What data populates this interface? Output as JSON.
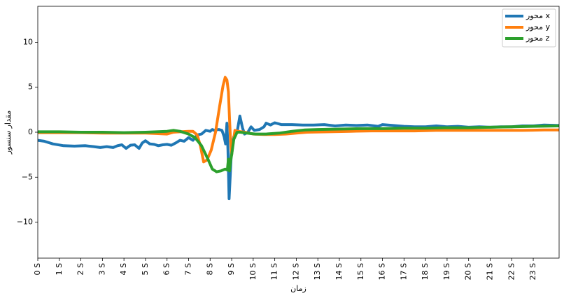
{
  "chart_data": {
    "type": "line",
    "title": "",
    "xlabel": "زمان",
    "ylabel": "مقدار سنسور",
    "xlim": [
      0,
      24.2
    ],
    "ylim": [
      -14,
      14
    ],
    "grid": false,
    "legend_position": "top-right",
    "x_ticks": [
      {
        "value": 0,
        "label": "0 S"
      },
      {
        "value": 1,
        "label": "1 S"
      },
      {
        "value": 2,
        "label": "2 S"
      },
      {
        "value": 3,
        "label": "3 S"
      },
      {
        "value": 4,
        "label": "4 S"
      },
      {
        "value": 5,
        "label": "5 S"
      },
      {
        "value": 6,
        "label": "6 S"
      },
      {
        "value": 7,
        "label": "7 S"
      },
      {
        "value": 8,
        "label": "8 S"
      },
      {
        "value": 9,
        "label": "9 S"
      },
      {
        "value": 10,
        "label": "10 S"
      },
      {
        "value": 11,
        "label": "11 S"
      },
      {
        "value": 12,
        "label": "12 S"
      },
      {
        "value": 13,
        "label": "13 S"
      },
      {
        "value": 14,
        "label": "14 S"
      },
      {
        "value": 15,
        "label": "15 S"
      },
      {
        "value": 16,
        "label": "16 S"
      },
      {
        "value": 17,
        "label": "17 S"
      },
      {
        "value": 18,
        "label": "18 S"
      },
      {
        "value": 19,
        "label": "19 S"
      },
      {
        "value": 20,
        "label": "20 S"
      },
      {
        "value": 21,
        "label": "21 S"
      },
      {
        "value": 22,
        "label": "22 S"
      },
      {
        "value": 23,
        "label": "23 S"
      }
    ],
    "y_ticks": [
      {
        "value": 10,
        "label": "10"
      },
      {
        "value": 5,
        "label": "5"
      },
      {
        "value": 0,
        "label": "0"
      },
      {
        "value": -5,
        "label": "−5"
      },
      {
        "value": -10,
        "label": "−10"
      }
    ],
    "series": [
      {
        "name": "محور x",
        "color": "#1f77b4",
        "points": [
          [
            0,
            -0.9
          ],
          [
            0.3,
            -1.0
          ],
          [
            0.7,
            -1.3
          ],
          [
            1.2,
            -1.5
          ],
          [
            1.7,
            -1.55
          ],
          [
            2.2,
            -1.5
          ],
          [
            2.6,
            -1.6
          ],
          [
            2.9,
            -1.7
          ],
          [
            3.2,
            -1.6
          ],
          [
            3.5,
            -1.7
          ],
          [
            3.7,
            -1.5
          ],
          [
            3.9,
            -1.4
          ],
          [
            4.1,
            -1.8
          ],
          [
            4.3,
            -1.45
          ],
          [
            4.5,
            -1.4
          ],
          [
            4.7,
            -1.8
          ],
          [
            4.85,
            -1.2
          ],
          [
            5.0,
            -0.95
          ],
          [
            5.2,
            -1.3
          ],
          [
            5.4,
            -1.35
          ],
          [
            5.6,
            -1.5
          ],
          [
            5.8,
            -1.4
          ],
          [
            6.0,
            -1.35
          ],
          [
            6.2,
            -1.45
          ],
          [
            6.4,
            -1.2
          ],
          [
            6.6,
            -0.9
          ],
          [
            6.8,
            -1.0
          ],
          [
            7.0,
            -0.6
          ],
          [
            7.2,
            -0.9
          ],
          [
            7.4,
            -0.3
          ],
          [
            7.6,
            -0.2
          ],
          [
            7.8,
            0.2
          ],
          [
            8.0,
            0.1
          ],
          [
            8.1,
            0.3
          ],
          [
            8.2,
            0.2
          ],
          [
            8.4,
            0.3
          ],
          [
            8.55,
            0.2
          ],
          [
            8.65,
            -0.5
          ],
          [
            8.72,
            -1.3
          ],
          [
            8.78,
            1.0
          ],
          [
            8.83,
            -2.0
          ],
          [
            8.88,
            -7.4
          ],
          [
            8.93,
            -5.0
          ],
          [
            9.0,
            -1.5
          ],
          [
            9.1,
            -0.5
          ],
          [
            9.25,
            0.0
          ],
          [
            9.38,
            1.8
          ],
          [
            9.5,
            0.5
          ],
          [
            9.6,
            -0.2
          ],
          [
            9.75,
            0.0
          ],
          [
            9.9,
            0.6
          ],
          [
            10.05,
            0.2
          ],
          [
            10.3,
            0.3
          ],
          [
            10.5,
            0.6
          ],
          [
            10.6,
            1.0
          ],
          [
            10.8,
            0.8
          ],
          [
            11.0,
            1.05
          ],
          [
            11.3,
            0.85
          ],
          [
            11.8,
            0.85
          ],
          [
            12.3,
            0.8
          ],
          [
            12.8,
            0.8
          ],
          [
            13.3,
            0.85
          ],
          [
            13.8,
            0.7
          ],
          [
            14.3,
            0.8
          ],
          [
            14.8,
            0.75
          ],
          [
            15.3,
            0.8
          ],
          [
            15.8,
            0.65
          ],
          [
            16.0,
            0.85
          ],
          [
            16.5,
            0.75
          ],
          [
            17.0,
            0.65
          ],
          [
            17.5,
            0.6
          ],
          [
            18.0,
            0.6
          ],
          [
            18.5,
            0.7
          ],
          [
            19.0,
            0.6
          ],
          [
            19.5,
            0.65
          ],
          [
            20.0,
            0.55
          ],
          [
            20.5,
            0.6
          ],
          [
            21.0,
            0.55
          ],
          [
            21.5,
            0.6
          ],
          [
            22.0,
            0.6
          ],
          [
            22.5,
            0.7
          ],
          [
            23.0,
            0.7
          ],
          [
            23.5,
            0.8
          ],
          [
            24.2,
            0.75
          ]
        ]
      },
      {
        "name": "محور y",
        "color": "#ff7f0e",
        "points": [
          [
            0,
            -0.05
          ],
          [
            1,
            -0.05
          ],
          [
            2,
            -0.05
          ],
          [
            3,
            -0.1
          ],
          [
            4,
            -0.1
          ],
          [
            5,
            -0.1
          ],
          [
            5.5,
            -0.15
          ],
          [
            6.0,
            -0.2
          ],
          [
            6.3,
            0.0
          ],
          [
            6.6,
            0.05
          ],
          [
            7.0,
            0.1
          ],
          [
            7.2,
            0.1
          ],
          [
            7.4,
            -0.3
          ],
          [
            7.55,
            -1.5
          ],
          [
            7.7,
            -3.3
          ],
          [
            7.85,
            -3.1
          ],
          [
            8.05,
            -2.0
          ],
          [
            8.25,
            0.0
          ],
          [
            8.45,
            3.0
          ],
          [
            8.6,
            5.2
          ],
          [
            8.7,
            6.1
          ],
          [
            8.78,
            5.8
          ],
          [
            8.85,
            4.5
          ],
          [
            8.9,
            1.5
          ],
          [
            8.95,
            -1.0
          ],
          [
            9.0,
            -2.5
          ],
          [
            9.05,
            -1.5
          ],
          [
            9.15,
            0.2
          ],
          [
            9.3,
            0.1
          ],
          [
            9.6,
            0.0
          ],
          [
            10.0,
            -0.2
          ],
          [
            10.5,
            -0.25
          ],
          [
            11.0,
            -0.25
          ],
          [
            11.5,
            -0.2
          ],
          [
            12.0,
            -0.1
          ],
          [
            12.5,
            0.0
          ],
          [
            13.5,
            0.05
          ],
          [
            14.5,
            0.1
          ],
          [
            15.5,
            0.15
          ],
          [
            16.5,
            0.15
          ],
          [
            17.5,
            0.15
          ],
          [
            18.5,
            0.2
          ],
          [
            19.5,
            0.2
          ],
          [
            20.5,
            0.2
          ],
          [
            21.5,
            0.2
          ],
          [
            22.5,
            0.2
          ],
          [
            23.5,
            0.25
          ],
          [
            24.2,
            0.25
          ]
        ]
      },
      {
        "name": "محور z",
        "color": "#2ca02c",
        "points": [
          [
            0,
            0.05
          ],
          [
            1,
            0.05
          ],
          [
            2,
            0.0
          ],
          [
            3,
            0.0
          ],
          [
            4,
            -0.05
          ],
          [
            5,
            0.0
          ],
          [
            5.5,
            0.05
          ],
          [
            6.0,
            0.1
          ],
          [
            6.3,
            0.2
          ],
          [
            6.6,
            0.1
          ],
          [
            7.0,
            -0.2
          ],
          [
            7.3,
            -0.6
          ],
          [
            7.6,
            -1.5
          ],
          [
            7.9,
            -3.0
          ],
          [
            8.1,
            -4.1
          ],
          [
            8.3,
            -4.4
          ],
          [
            8.5,
            -4.3
          ],
          [
            8.7,
            -4.1
          ],
          [
            8.8,
            -4.2
          ],
          [
            8.85,
            -3.0
          ],
          [
            8.9,
            -4.3
          ],
          [
            8.95,
            -3.2
          ],
          [
            9.0,
            -2.5
          ],
          [
            9.1,
            -0.8
          ],
          [
            9.25,
            0.0
          ],
          [
            9.4,
            0.0
          ],
          [
            9.7,
            -0.1
          ],
          [
            10.1,
            -0.2
          ],
          [
            10.6,
            -0.2
          ],
          [
            11.2,
            -0.1
          ],
          [
            11.8,
            0.1
          ],
          [
            12.4,
            0.25
          ],
          [
            13.0,
            0.3
          ],
          [
            14.0,
            0.35
          ],
          [
            15.0,
            0.4
          ],
          [
            16.0,
            0.4
          ],
          [
            17.0,
            0.45
          ],
          [
            18.0,
            0.45
          ],
          [
            19.0,
            0.5
          ],
          [
            20.0,
            0.5
          ],
          [
            21.0,
            0.55
          ],
          [
            22.0,
            0.6
          ],
          [
            23.0,
            0.65
          ],
          [
            24.2,
            0.7
          ]
        ]
      }
    ]
  }
}
